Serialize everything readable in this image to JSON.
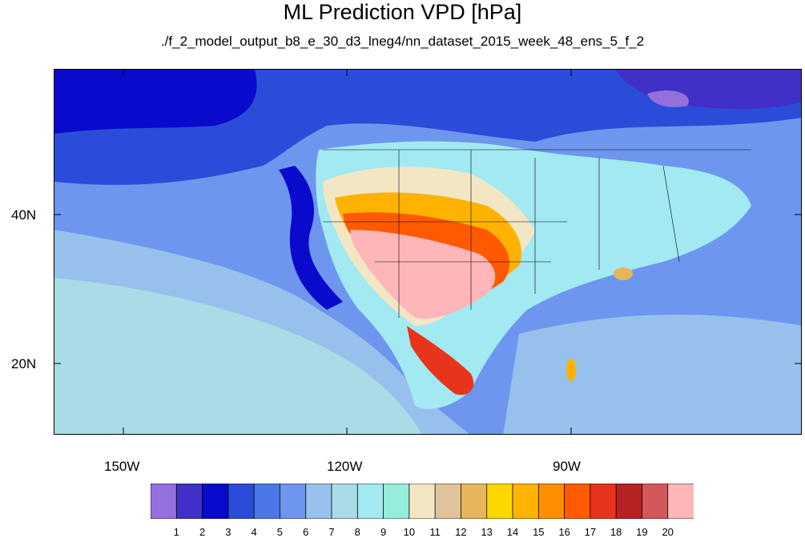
{
  "title": "ML Prediction VPD [hPa]",
  "subtitle": "./f_2_model_output_b8_e_30_d3_lneg4/nn_dataset_2015_week_48_ens_5_f_2",
  "axes": {
    "lon_labels": [
      "150W",
      "120W",
      "90W"
    ],
    "lat_labels": [
      "40N",
      "20N"
    ]
  },
  "colorbar": {
    "tick_labels": [
      "1",
      "2",
      "3",
      "4",
      "5",
      "6",
      "7",
      "8",
      "9",
      "10",
      "11",
      "12",
      "13",
      "14",
      "15",
      "16",
      "17",
      "18",
      "19",
      "20"
    ],
    "colors": [
      "#9370DB",
      "#4030C8",
      "#0A0ACD",
      "#2B4CD8",
      "#4A78E8",
      "#6E96EE",
      "#97C1EC",
      "#A9DCE6",
      "#A2E9F2",
      "#96EDDB",
      "#F2E6C4",
      "#DFC39B",
      "#E8B65A",
      "#FFD700",
      "#FFB300",
      "#FF8F00",
      "#FF5A00",
      "#E8341C",
      "#B82222",
      "#D4575B",
      "#FFB6B8"
    ]
  }
}
